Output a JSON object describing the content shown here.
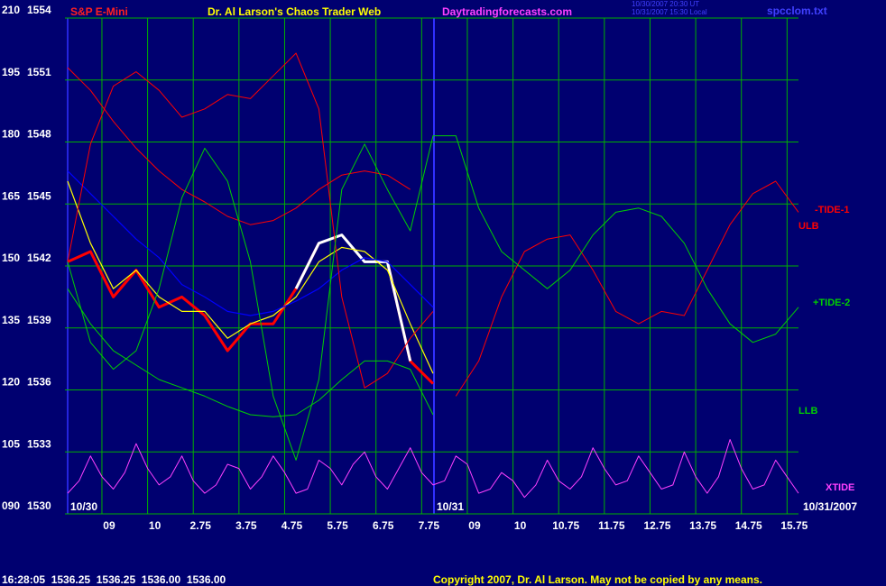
{
  "chart_data": {
    "type": "line",
    "title": "S&P E-Mini",
    "subtitle": "Dr. Al Larson's Chaos Trader Web",
    "website": "Daytradingforecasts.com",
    "timestamp_lines": [
      "10/30/2007 20:30 UT",
      "10/31/2007 15:30 Local"
    ],
    "file_name": "spcclom.txt",
    "date_labels": [
      "10/30",
      "10/31",
      "10/31/2007"
    ],
    "quote_line": "16:28:05  1536.25  1536.25  1536.00  1536.00",
    "copyright": "Copyright 2007, Dr. Al Larson. May not be copied by any means.",
    "xlim": [
      0,
      16
    ],
    "xticks": [
      {
        "value": 0.75,
        "label": "09"
      },
      {
        "value": 1.75,
        "label": "10"
      },
      2.75,
      3.75,
      4.75,
      5.75,
      6.75,
      7.75,
      {
        "value": 8.75,
        "label": "09"
      },
      {
        "value": 9.75,
        "label": "10"
      },
      10.75,
      11.75,
      12.75,
      13.75,
      14.75,
      15.75
    ],
    "ylim": [
      1530,
      1554
    ],
    "yticks": [
      1530,
      1533,
      1536,
      1539,
      1542,
      1545,
      1548,
      1551,
      1554
    ],
    "y2lim": [
      90,
      210
    ],
    "y2ticks": [
      {
        "value": 90,
        "label": "090"
      },
      105,
      120,
      135,
      150,
      165,
      180,
      195,
      210
    ],
    "grid": true,
    "x": [
      0,
      0.5,
      1,
      1.5,
      2,
      2.5,
      3,
      3.5,
      4,
      4.5,
      5,
      5.5,
      6,
      6.5,
      7,
      7.5,
      8,
      8.5,
      9,
      9.5,
      10,
      10.5,
      11,
      11.5,
      12,
      12.5,
      13,
      13.5,
      14,
      14.5,
      15,
      15.5,
      16
    ],
    "series": [
      {
        "color": "#ff0000",
        "values": [
          1542.2,
          1542.7,
          1540.5,
          1541.8,
          1540.0,
          1540.5,
          1539.6,
          1537.9,
          1539.2,
          1539.2,
          1540.9,
          1543.1,
          null,
          null,
          1542.2,
          1537.4,
          1536.3,
          null,
          null,
          null,
          null,
          null,
          null,
          null,
          null,
          null,
          null,
          null,
          null,
          null,
          null,
          null,
          null
        ]
      },
      {
        "color": "#ffffff",
        "values": [
          null,
          null,
          null,
          null,
          null,
          null,
          null,
          null,
          null,
          null,
          1540.9,
          1543.1,
          1543.5,
          1542.2,
          1542.2,
          1537.4,
          null,
          null,
          null,
          null,
          null,
          null,
          null,
          null,
          null,
          null,
          null,
          null,
          null,
          null,
          null,
          null,
          null
        ]
      },
      {
        "color": "#ffff00",
        "values": [
          1546.1,
          1543.1,
          1540.9,
          1541.8,
          1540.5,
          1539.8,
          1539.8,
          1538.5,
          1539.2,
          1539.6,
          1540.5,
          1542.2,
          1542.9,
          1542.7,
          1541.8,
          1539.2,
          1536.8,
          null,
          null,
          null,
          null,
          null,
          null,
          null,
          null,
          null,
          null,
          null,
          null,
          null,
          null,
          null,
          null
        ]
      },
      {
        "color": "#0000ff",
        "values": [
          1546.6,
          1545.5,
          1544.4,
          1543.3,
          1542.4,
          1541.1,
          1540.5,
          1539.8,
          1539.6,
          1539.8,
          1540.3,
          1540.9,
          1541.8,
          1542.4,
          1542.2,
          1541.1,
          1540.0,
          null,
          null,
          null,
          null,
          null,
          null,
          null,
          null,
          null,
          null,
          null,
          null,
          null,
          null,
          null,
          null
        ]
      },
      {
        "name": "-TIDE-1",
        "color": "#ff0000",
        "values": [
          1551.6,
          1550.5,
          1549.0,
          1547.7,
          1546.6,
          1545.7,
          1545.1,
          1544.4,
          1544.0,
          1544.2,
          1544.8,
          1545.7,
          1546.4,
          1546.6,
          1546.4,
          1545.7,
          null,
          1535.7,
          1537.4,
          1540.5,
          1542.7,
          1543.3,
          1543.5,
          1541.8,
          1539.8,
          1539.2,
          1539.8,
          1539.6,
          1541.8,
          1544.0,
          1545.5,
          1546.1,
          1544.6
        ]
      },
      {
        "name": "ULB",
        "color": "#ff0000",
        "values": [
          1542.2,
          1547.9,
          1550.7,
          1551.4,
          1550.5,
          1549.2,
          1549.6,
          1550.3,
          1550.1,
          1551.2,
          1552.3,
          1549.6,
          1540.5,
          1536.1,
          1536.8,
          1538.5,
          1539.8,
          null,
          null,
          null,
          null,
          null,
          null,
          null,
          null,
          null,
          null,
          null,
          null,
          null,
          null,
          null,
          null
        ]
      },
      {
        "name": "+TIDE-2",
        "color": "#00d000",
        "values": [
          1542.2,
          1538.3,
          1537.0,
          1537.9,
          1540.9,
          1545.3,
          1547.7,
          1546.1,
          1542.2,
          1535.7,
          1532.6,
          1536.5,
          1545.7,
          1547.9,
          1545.7,
          1543.7,
          1548.3,
          1548.3,
          1544.8,
          1542.7,
          1541.8,
          1540.9,
          1541.8,
          1543.5,
          1544.6,
          1544.8,
          1544.4,
          1543.1,
          1540.9,
          1539.2,
          1538.3,
          1538.7,
          1540.0
        ]
      },
      {
        "name": "LLB",
        "color": "#00d000",
        "values": [
          1540.9,
          1539.2,
          1537.9,
          1537.2,
          1536.5,
          1536.1,
          1535.7,
          1535.2,
          1534.8,
          1534.7,
          1534.8,
          1535.5,
          1536.5,
          1537.4,
          1537.4,
          1537.0,
          1534.8,
          null,
          null,
          null,
          null,
          null,
          null,
          null,
          null,
          null,
          null,
          null,
          null,
          null,
          null,
          null,
          null
        ]
      },
      {
        "name": "XTIDE",
        "color": "#ff40ff",
        "axis": "y2",
        "x": [
          0,
          0.25,
          0.5,
          0.75,
          1,
          1.25,
          1.5,
          1.75,
          2,
          2.25,
          2.5,
          2.75,
          3,
          3.25,
          3.5,
          3.75,
          4,
          4.25,
          4.5,
          4.75,
          5,
          5.25,
          5.5,
          5.75,
          6,
          6.25,
          6.5,
          6.75,
          7,
          7.25,
          7.5,
          7.75,
          8,
          8.25,
          8.5,
          8.75,
          9,
          9.25,
          9.5,
          9.75,
          10,
          10.25,
          10.5,
          10.75,
          11,
          11.25,
          11.5,
          11.75,
          12,
          12.25,
          12.5,
          12.75,
          13,
          13.25,
          13.5,
          13.75,
          14,
          14.25,
          14.5,
          14.75,
          15,
          15.25,
          15.5,
          15.75,
          16
        ],
        "values": [
          95,
          98,
          104,
          99,
          96,
          100,
          107,
          101,
          97,
          99,
          104,
          98,
          95,
          97,
          102,
          101,
          96,
          99,
          104,
          100,
          95,
          96,
          103,
          101,
          97,
          102,
          105,
          99,
          96,
          101,
          106,
          100,
          97,
          98,
          104,
          102,
          95,
          96,
          100,
          98,
          94,
          97,
          103,
          98,
          96,
          99,
          106,
          101,
          97,
          98,
          104,
          100,
          96,
          97,
          105,
          99,
          95,
          99,
          108,
          101,
          96,
          97,
          103,
          99,
          95
        ]
      }
    ]
  }
}
